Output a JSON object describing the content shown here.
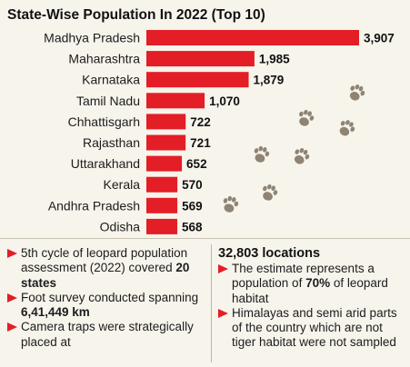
{
  "chart_data": {
    "type": "bar",
    "orientation": "horizontal",
    "title": "State-Wise Population In 2022 (Top 10)",
    "categories": [
      "Madhya Pradesh",
      "Maharashtra",
      "Karnataka",
      "Tamil Nadu",
      "Chhattisgarh",
      "Rajasthan",
      "Uttarakhand",
      "Kerala",
      "Andhra Pradesh",
      "Odisha"
    ],
    "values": [
      3907,
      1985,
      1879,
      1070,
      722,
      721,
      652,
      570,
      569,
      568
    ],
    "value_labels": [
      "3,907",
      "1,985",
      "1,879",
      "1,070",
      "722",
      "721",
      "652",
      "570",
      "569",
      "568"
    ],
    "xlim": [
      0,
      3907
    ],
    "grid": false,
    "colors": {
      "bar": "#e31e26",
      "background": "#f7f4ec",
      "pawprint": "#8f8474"
    }
  },
  "notes": {
    "left": {
      "items": [
        [
          "5th cycle of leopard population assessment (2022) covered ",
          "20 states",
          ""
        ],
        [
          "Foot survey conducted spanning ",
          "6,41,449 km",
          ""
        ],
        [
          "Camera traps were strategically placed at",
          "",
          ""
        ]
      ]
    },
    "right": {
      "heading": "32,803 locations",
      "items": [
        [
          "The estimate represents a population of ",
          "70%",
          " of leopard habitat"
        ],
        [
          "Himalayas and semi arid parts of the country which are not tiger habitat were not sampled",
          "",
          ""
        ]
      ]
    },
    "bullet_icon": "arrow-bullet-icon"
  },
  "decorations": {
    "icon": "pawprint-icon"
  }
}
